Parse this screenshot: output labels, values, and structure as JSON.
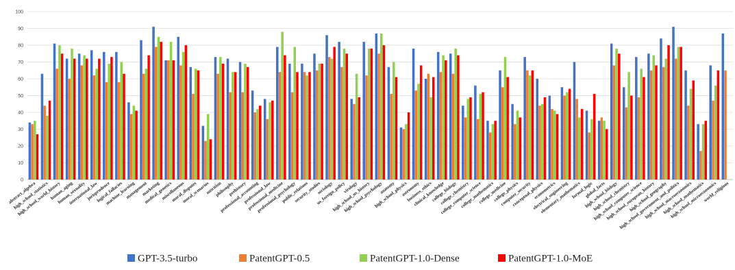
{
  "chart_data": {
    "type": "bar",
    "title": "",
    "xlabel": "",
    "ylabel": "",
    "ylim": [
      0,
      100
    ],
    "yticks": [
      0,
      10,
      20,
      30,
      40,
      50,
      60,
      70,
      80,
      90,
      100
    ],
    "grid": true,
    "legend_position": "bottom",
    "categories": [
      "abstract_algebra",
      "high_school_statistics",
      "high_school_world_history",
      "human_aging",
      "human_sexuality",
      "international_law",
      "jurisprudence",
      "logical_fallacies",
      "machine_learning",
      "management",
      "marketing",
      "medical_genetics",
      "miscellaneous",
      "moral_disputes",
      "moral_scenarios",
      "nutrition",
      "philosophy",
      "prehistory",
      "professional_accounting",
      "professional_law",
      "professional_medicine",
      "professional_psychology",
      "public_relations",
      "security_studies",
      "sociology",
      "us_foreign_policy",
      "virology",
      "high_school_us_history",
      "high_school_psychology",
      "anatomy",
      "high_school_physics",
      "astronomy",
      "business_ethics",
      "clinical_knowledge",
      "college_biology",
      "college_chemistry",
      "college_computer_science",
      "college_mathematics",
      "college_medicine",
      "college_physics",
      "computer_security",
      "conceptual_physics",
      "econometrics",
      "electrical_engineering",
      "elementary_mathematics",
      "formal_logic",
      "global_facts",
      "high_school_biology",
      "high_school_chemistry",
      "high_school_computer_science",
      "high_school_european_history",
      "high_school_geography",
      "high_school_government_and_politics",
      "high_school_macroeconomics",
      "high_school_mathematics",
      "high_school_microeconomics",
      "world_religions"
    ],
    "series": [
      {
        "name": "GPT-3.5-turbo",
        "color": "#4472C4",
        "values": [
          34,
          63,
          81,
          72,
          75,
          77,
          76,
          76,
          46,
          83,
          91,
          71,
          85,
          67,
          32,
          73,
          72,
          70,
          53,
          48,
          79,
          69,
          69,
          75,
          86,
          82,
          48,
          82,
          87,
          67,
          31,
          78,
          60,
          76,
          75,
          44,
          56,
          35,
          65,
          45,
          73,
          60,
          50,
          55,
          70,
          41,
          35,
          81,
          55,
          73,
          75,
          84,
          91,
          65,
          33,
          68,
          87
        ]
      },
      {
        "name": "PatentGPT-0.5",
        "color": "#ED7D31",
        "values": [
          33,
          44,
          66,
          60,
          68,
          62,
          58,
          58,
          39,
          63,
          79,
          71,
          68,
          51,
          23,
          63,
          52,
          52,
          40,
          36,
          64,
          52,
          64,
          65,
          73,
          67,
          45,
          62,
          75,
          51,
          30,
          53,
          63,
          64,
          63,
          37,
          36,
          28,
          55,
          33,
          65,
          44,
          42,
          50,
          48,
          28,
          37,
          68,
          43,
          49,
          65,
          67,
          72,
          44,
          17,
          47,
          65
        ]
      },
      {
        "name": "PatentGPT-1.0-Dense",
        "color": "#92D050",
        "values": [
          35,
          38,
          80,
          78,
          74,
          66,
          69,
          70,
          44,
          66,
          85,
          82,
          76,
          66,
          39,
          73,
          64,
          69,
          42,
          46,
          88,
          79,
          62,
          69,
          72,
          78,
          63,
          78,
          87,
          70,
          33,
          57,
          49,
          74,
          78,
          48,
          51,
          33,
          73,
          41,
          62,
          45,
          41,
          52,
          37,
          36,
          35,
          78,
          64,
          66,
          74,
          72,
          79,
          54,
          33,
          56,
          0
        ]
      },
      {
        "name": "PatentGPT-1.0-MoE",
        "color": "#FF0000",
        "values": [
          27,
          47,
          75,
          72,
          72,
          72,
          73,
          63,
          41,
          74,
          82,
          71,
          80,
          65,
          24,
          69,
          64,
          67,
          44,
          47,
          74,
          64,
          64,
          69,
          79,
          75,
          49,
          78,
          80,
          61,
          40,
          68,
          61,
          71,
          74,
          49,
          52,
          35,
          61,
          37,
          65,
          49,
          39,
          54,
          42,
          51,
          30,
          75,
          50,
          61,
          68,
          80,
          79,
          59,
          35,
          65,
          0
        ]
      }
    ]
  }
}
